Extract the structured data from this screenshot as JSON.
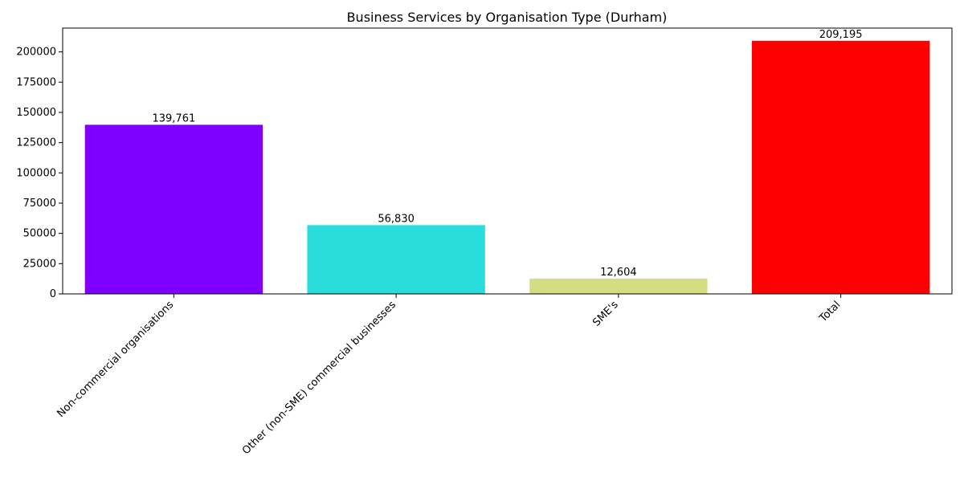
{
  "chart_data": {
    "type": "bar",
    "title": "Business Services by Organisation Type (Durham)",
    "xlabel": "",
    "ylabel": "",
    "categories": [
      "Non-commercial organisations",
      "Other (non-SME) commercial businesses",
      "SME's",
      "Total"
    ],
    "values": [
      139761,
      56830,
      12604,
      209195
    ],
    "value_labels": [
      "139,761",
      "56,830",
      "12,604",
      "209,195"
    ],
    "colors": [
      "#8000ff",
      "#2adddd",
      "#d4dd80",
      "#ff0000"
    ],
    "ylim": [
      0,
      219655
    ],
    "yticks": [
      0,
      25000,
      50000,
      75000,
      100000,
      125000,
      150000,
      175000,
      200000
    ],
    "ytick_labels": [
      "0",
      "25000",
      "50000",
      "75000",
      "100000",
      "125000",
      "150000",
      "175000",
      "200000"
    ],
    "xtick_rotation_deg": 45,
    "grid": false,
    "legend": "none"
  }
}
